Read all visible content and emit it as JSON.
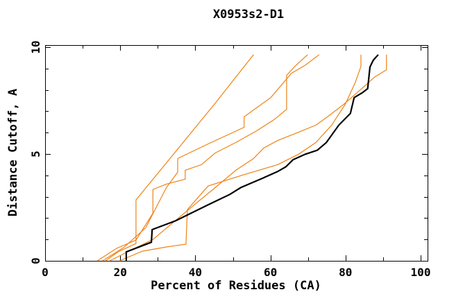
{
  "title": "X0953s2-D1",
  "chart_data": {
    "type": "line",
    "title": "X0953s2-D1",
    "xlabel": "Percent of Residues (CA)",
    "ylabel": "Distance Cutoff, A",
    "xlim": [
      0,
      102
    ],
    "ylim": [
      0,
      10.1
    ],
    "x_major_ticks": [
      0,
      20,
      40,
      60,
      80,
      100
    ],
    "x_minor_step": 10,
    "y_major_ticks": [
      0,
      5,
      10
    ],
    "y_minor_step": 1,
    "grid": false,
    "frame": true,
    "legend": "none",
    "colors": {
      "reference_black": "#000000",
      "alignment_orange": "#ee8214"
    },
    "series": [
      {
        "name": "orange-curve-1",
        "color": "#ee8214",
        "width": 1.2,
        "points": [
          [
            16.1,
            0
          ],
          [
            19.4,
            0.42
          ],
          [
            24.2,
            0.81
          ],
          [
            24.2,
            2.85
          ],
          [
            36,
            5.38
          ],
          [
            45.3,
            7.38
          ],
          [
            55.5,
            9.65
          ]
        ]
      },
      {
        "name": "orange-curve-2",
        "color": "#ee8214",
        "width": 1.2,
        "points": [
          [
            13.9,
            0
          ],
          [
            19,
            0.58
          ],
          [
            24.2,
            0.97
          ],
          [
            28.7,
            2.23
          ],
          [
            28.7,
            3.34
          ],
          [
            32.3,
            3.59
          ],
          [
            37.3,
            3.82
          ],
          [
            37.3,
            4.24
          ],
          [
            41.6,
            4.5
          ],
          [
            45.3,
            5.05
          ],
          [
            50.8,
            5.54
          ],
          [
            56.4,
            6.09
          ],
          [
            61,
            6.61
          ],
          [
            64.3,
            7.09
          ],
          [
            64.3,
            8.68
          ],
          [
            66.5,
            9.1
          ],
          [
            69.9,
            9.65
          ]
        ]
      },
      {
        "name": "orange-curve-3",
        "color": "#ee8214",
        "width": 1.2,
        "points": [
          [
            15.3,
            0
          ],
          [
            20.9,
            0.62
          ],
          [
            26.8,
            1.55
          ],
          [
            32.3,
            3.43
          ],
          [
            35.3,
            4.15
          ],
          [
            35.3,
            4.79
          ],
          [
            43.4,
            5.47
          ],
          [
            53,
            6.25
          ],
          [
            53,
            6.74
          ],
          [
            60.1,
            7.64
          ],
          [
            65.6,
            8.78
          ],
          [
            69.3,
            9.16
          ],
          [
            73,
            9.65
          ]
        ]
      },
      {
        "name": "orange-curve-4",
        "color": "#ee8214",
        "width": 1.2,
        "points": [
          [
            19.8,
            0
          ],
          [
            25.9,
            0.45
          ],
          [
            32.3,
            0.65
          ],
          [
            37.5,
            0.78
          ],
          [
            37.9,
            2.4
          ],
          [
            43.4,
            3.5
          ],
          [
            52.7,
            4.02
          ],
          [
            61.9,
            4.5
          ],
          [
            67.5,
            4.99
          ],
          [
            72.1,
            5.54
          ],
          [
            76.3,
            6.35
          ],
          [
            79.9,
            7.32
          ],
          [
            82.6,
            8.35
          ],
          [
            84.1,
            9.1
          ],
          [
            84.1,
            9.65
          ]
        ]
      },
      {
        "name": "orange-curve-5",
        "color": "#ee8214",
        "width": 1.2,
        "points": [
          [
            17.2,
            0
          ],
          [
            23.1,
            0.52
          ],
          [
            28.7,
            1
          ],
          [
            34.2,
            1.81
          ],
          [
            39.7,
            2.62
          ],
          [
            45.3,
            3.43
          ],
          [
            50.8,
            4.24
          ],
          [
            55.5,
            4.79
          ],
          [
            58.2,
            5.28
          ],
          [
            61.9,
            5.63
          ],
          [
            67.5,
            6.02
          ],
          [
            72.1,
            6.35
          ],
          [
            75.2,
            6.74
          ],
          [
            79.5,
            7.32
          ],
          [
            84.1,
            8.03
          ],
          [
            87.8,
            8.61
          ],
          [
            90.9,
            8.94
          ],
          [
            90.9,
            9.65
          ]
        ]
      },
      {
        "name": "black-curve",
        "color": "#000000",
        "width": 2.2,
        "points": [
          [
            21.6,
            0
          ],
          [
            21.6,
            0.42
          ],
          [
            28.3,
            0.87
          ],
          [
            28.5,
            1.46
          ],
          [
            34.8,
            1.88
          ],
          [
            43.4,
            2.62
          ],
          [
            49.2,
            3.11
          ],
          [
            52.1,
            3.43
          ],
          [
            58.2,
            3.89
          ],
          [
            61.9,
            4.18
          ],
          [
            64.1,
            4.4
          ],
          [
            66,
            4.73
          ],
          [
            69.3,
            4.99
          ],
          [
            72.5,
            5.18
          ],
          [
            74.9,
            5.54
          ],
          [
            78.2,
            6.35
          ],
          [
            81.3,
            6.9
          ],
          [
            82.3,
            7.64
          ],
          [
            84.5,
            7.87
          ],
          [
            85.9,
            8.06
          ],
          [
            86.5,
            9.07
          ],
          [
            87.4,
            9.39
          ],
          [
            88.7,
            9.65
          ]
        ]
      }
    ]
  }
}
